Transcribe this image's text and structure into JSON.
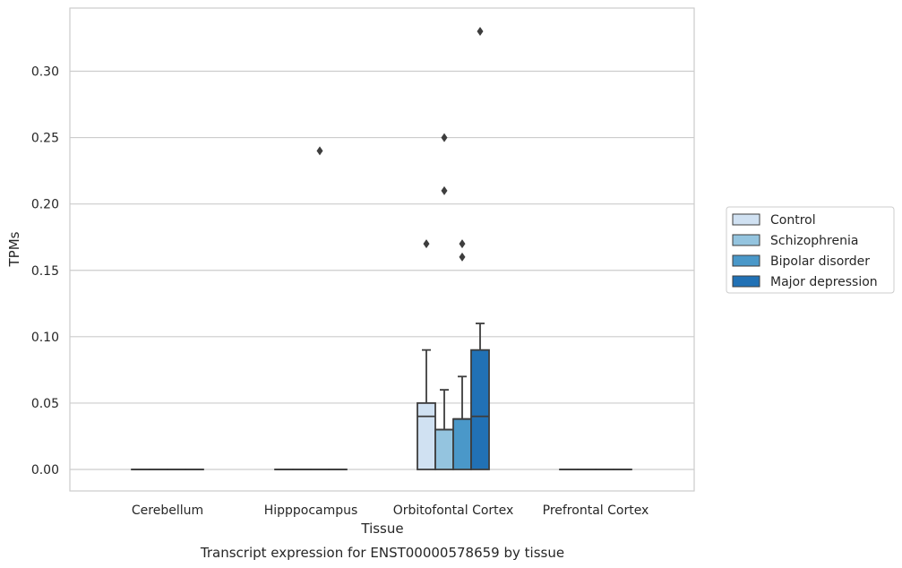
{
  "chart_data": {
    "type": "box",
    "title": "",
    "caption": "Transcript expression for ENST00000578659 by tissue",
    "xlabel": "Tissue",
    "ylabel": "TPMs",
    "ylim": [
      -0.016,
      0.347
    ],
    "yticks": [
      "0.00",
      "0.05",
      "0.10",
      "0.15",
      "0.20",
      "0.25",
      "0.30"
    ],
    "ytick_values": [
      0,
      0.05,
      0.1,
      0.15,
      0.2,
      0.25,
      0.3
    ],
    "grid": "horizontal",
    "legend_position": "right",
    "categories": [
      "Cerebellum",
      "Hipppocampus",
      "Orbitofontal Cortex",
      "Prefrontal Cortex"
    ],
    "series": [
      {
        "name": "Control",
        "color": "#d0e1f2",
        "boxes": [
          {
            "category": "Cerebellum",
            "q1": 0,
            "median": 0,
            "q3": 0,
            "whislo": 0,
            "whishi": 0,
            "fliers": []
          },
          {
            "category": "Hipppocampus",
            "q1": 0,
            "median": 0,
            "q3": 0,
            "whislo": 0,
            "whishi": 0,
            "fliers": []
          },
          {
            "category": "Orbitofontal Cortex",
            "q1": 0,
            "median": 0.04,
            "q3": 0.05,
            "whislo": 0,
            "whishi": 0.09,
            "fliers": [
              0.17
            ]
          },
          {
            "category": "Prefrontal Cortex",
            "q1": 0,
            "median": 0,
            "q3": 0,
            "whislo": 0,
            "whishi": 0,
            "fliers": []
          }
        ]
      },
      {
        "name": "Schizophrenia",
        "color": "#94c4df",
        "boxes": [
          {
            "category": "Cerebellum",
            "q1": 0,
            "median": 0,
            "q3": 0,
            "whislo": 0,
            "whishi": 0,
            "fliers": []
          },
          {
            "category": "Hipppocampus",
            "q1": 0,
            "median": 0,
            "q3": 0,
            "whislo": 0,
            "whishi": 0,
            "fliers": []
          },
          {
            "category": "Orbitofontal Cortex",
            "q1": 0,
            "median": 0.03,
            "q3": 0.03,
            "whislo": 0,
            "whishi": 0.06,
            "fliers": [
              0.21,
              0.25
            ]
          },
          {
            "category": "Prefrontal Cortex",
            "q1": 0,
            "median": 0,
            "q3": 0,
            "whislo": 0,
            "whishi": 0,
            "fliers": []
          }
        ]
      },
      {
        "name": "Bipolar disorder",
        "color": "#4a98c9",
        "boxes": [
          {
            "category": "Cerebellum",
            "q1": 0,
            "median": 0,
            "q3": 0,
            "whislo": 0,
            "whishi": 0,
            "fliers": []
          },
          {
            "category": "Hipppocampus",
            "q1": 0,
            "median": 0,
            "q3": 0,
            "whislo": 0,
            "whishi": 0,
            "fliers": [
              0.24
            ]
          },
          {
            "category": "Orbitofontal Cortex",
            "q1": 0,
            "median": 0.038,
            "q3": 0.038,
            "whislo": 0,
            "whishi": 0.07,
            "fliers": [
              0.16,
              0.17
            ]
          },
          {
            "category": "Prefrontal Cortex",
            "q1": 0,
            "median": 0,
            "q3": 0,
            "whislo": 0,
            "whishi": 0,
            "fliers": []
          }
        ]
      },
      {
        "name": "Major depression",
        "color": "#2171b5",
        "boxes": [
          {
            "category": "Cerebellum",
            "q1": 0,
            "median": 0,
            "q3": 0,
            "whislo": 0,
            "whishi": 0,
            "fliers": []
          },
          {
            "category": "Hipppocampus",
            "q1": 0,
            "median": 0,
            "q3": 0,
            "whislo": 0,
            "whishi": 0,
            "fliers": []
          },
          {
            "category": "Orbitofontal Cortex",
            "q1": 0,
            "median": 0.04,
            "q3": 0.09,
            "whislo": 0,
            "whishi": 0.11,
            "fliers": [
              0.33
            ]
          },
          {
            "category": "Prefrontal Cortex",
            "q1": 0,
            "median": 0,
            "q3": 0,
            "whislo": 0,
            "whishi": 0,
            "fliers": []
          }
        ]
      }
    ]
  }
}
